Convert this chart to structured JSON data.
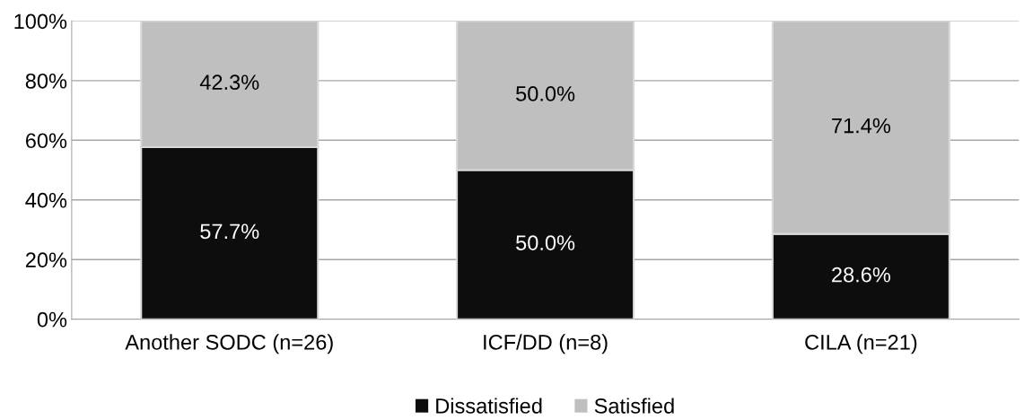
{
  "chart_data": {
    "type": "bar",
    "stacked": true,
    "categories": [
      "Another SODC (n=26)",
      "ICF/DD (n=8)",
      "CILA (n=21)"
    ],
    "series": [
      {
        "name": "Dissatisfied",
        "color": "#0d0d0d",
        "values": [
          57.7,
          50.0,
          28.6
        ],
        "value_labels": [
          "57.7%",
          "50.0%",
          "28.6%"
        ]
      },
      {
        "name": "Satisfied",
        "color": "#bfbfbf",
        "values": [
          42.3,
          50.0,
          71.4
        ],
        "value_labels": [
          "42.3%",
          "50.0%",
          "71.4%"
        ]
      }
    ],
    "ylim": [
      0,
      100
    ],
    "yticks": [
      {
        "value": 0,
        "label": "0%"
      },
      {
        "value": 20,
        "label": "20%"
      },
      {
        "value": 40,
        "label": "40%"
      },
      {
        "value": 60,
        "label": "60%"
      },
      {
        "value": 80,
        "label": "80%"
      },
      {
        "value": 100,
        "label": "100%"
      }
    ],
    "grid": "y",
    "legend": "bottom"
  }
}
